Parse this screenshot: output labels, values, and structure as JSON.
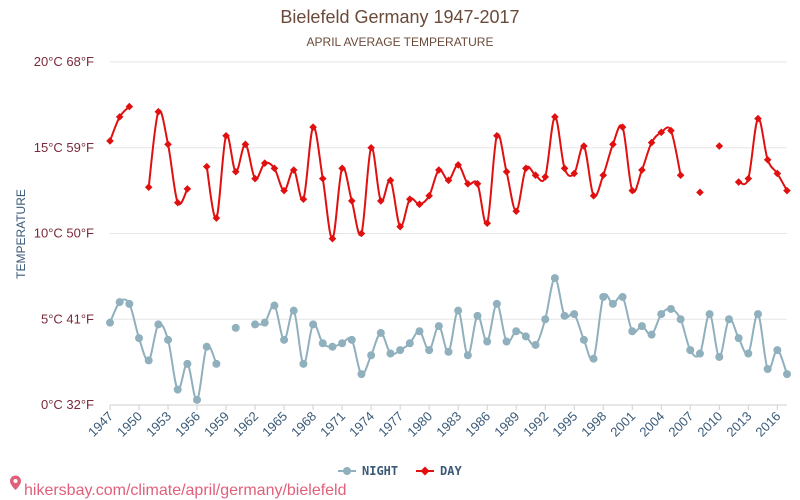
{
  "chart_data": {
    "type": "line",
    "title": "Bielefeld Germany 1947-2017",
    "subtitle": "APRIL AVERAGE TEMPERATURE",
    "ylabel": "TEMPERATURE",
    "ylim": [
      0,
      20
    ],
    "xlim": [
      1947,
      2017
    ],
    "yticks": [
      {
        "value": 0,
        "label": "0°C 32°F"
      },
      {
        "value": 5,
        "label": "5°C 41°F"
      },
      {
        "value": 10,
        "label": "10°C 50°F"
      },
      {
        "value": 15,
        "label": "15°C 59°F"
      },
      {
        "value": 20,
        "label": "20°C 68°F"
      }
    ],
    "xticks": [
      1947,
      1950,
      1953,
      1956,
      1959,
      1962,
      1965,
      1968,
      1971,
      1974,
      1977,
      1980,
      1983,
      1986,
      1989,
      1992,
      1995,
      1998,
      2001,
      2004,
      2007,
      2010,
      2013,
      2016
    ],
    "series": [
      {
        "name": "NIGHT",
        "color": "#8fb0bc",
        "marker": "circle",
        "points": [
          [
            1947,
            4.8
          ],
          [
            1948,
            6.0
          ],
          [
            1949,
            5.9
          ],
          [
            1950,
            3.9
          ],
          [
            1951,
            2.6
          ],
          [
            1952,
            4.7
          ],
          [
            1953,
            3.8
          ],
          [
            1954,
            0.9
          ],
          [
            1955,
            2.4
          ],
          [
            1956,
            0.3
          ],
          [
            1957,
            3.4
          ],
          [
            1958,
            2.4
          ],
          [
            1960,
            4.5
          ],
          [
            1962,
            4.7
          ],
          [
            1963,
            4.8
          ],
          [
            1964,
            5.8
          ],
          [
            1965,
            3.8
          ],
          [
            1966,
            5.5
          ],
          [
            1967,
            2.4
          ],
          [
            1968,
            4.7
          ],
          [
            1969,
            3.6
          ],
          [
            1970,
            3.4
          ],
          [
            1971,
            3.6
          ],
          [
            1972,
            3.8
          ],
          [
            1973,
            1.8
          ],
          [
            1974,
            2.9
          ],
          [
            1975,
            4.2
          ],
          [
            1976,
            3.0
          ],
          [
            1977,
            3.2
          ],
          [
            1978,
            3.6
          ],
          [
            1979,
            4.3
          ],
          [
            1980,
            3.2
          ],
          [
            1981,
            4.6
          ],
          [
            1982,
            3.1
          ],
          [
            1983,
            5.5
          ],
          [
            1984,
            2.9
          ],
          [
            1985,
            5.2
          ],
          [
            1986,
            3.7
          ],
          [
            1987,
            5.9
          ],
          [
            1988,
            3.7
          ],
          [
            1989,
            4.3
          ],
          [
            1990,
            4.0
          ],
          [
            1991,
            3.5
          ],
          [
            1992,
            5.0
          ],
          [
            1993,
            7.4
          ],
          [
            1994,
            5.2
          ],
          [
            1995,
            5.3
          ],
          [
            1996,
            3.8
          ],
          [
            1997,
            2.7
          ],
          [
            1998,
            6.3
          ],
          [
            1999,
            5.9
          ],
          [
            2000,
            6.3
          ],
          [
            2001,
            4.3
          ],
          [
            2002,
            4.6
          ],
          [
            2003,
            4.1
          ],
          [
            2004,
            5.3
          ],
          [
            2005,
            5.6
          ],
          [
            2006,
            5.0
          ],
          [
            2007,
            3.2
          ],
          [
            2008,
            3.0
          ],
          [
            2009,
            5.3
          ],
          [
            2010,
            2.8
          ],
          [
            2011,
            5.0
          ],
          [
            2012,
            3.9
          ],
          [
            2013,
            3.0
          ],
          [
            2014,
            5.3
          ],
          [
            2015,
            2.1
          ],
          [
            2016,
            3.2
          ],
          [
            2017,
            1.8
          ]
        ]
      },
      {
        "name": "DAY",
        "color": "#e01010",
        "marker": "diamond",
        "points": [
          [
            1947,
            15.4
          ],
          [
            1948,
            16.8
          ],
          [
            1949,
            17.4
          ],
          [
            1951,
            12.7
          ],
          [
            1952,
            17.1
          ],
          [
            1953,
            15.2
          ],
          [
            1954,
            11.8
          ],
          [
            1955,
            12.6
          ],
          [
            1957,
            13.9
          ],
          [
            1958,
            10.9
          ],
          [
            1959,
            15.7
          ],
          [
            1960,
            13.6
          ],
          [
            1961,
            15.2
          ],
          [
            1962,
            13.2
          ],
          [
            1963,
            14.1
          ],
          [
            1964,
            13.8
          ],
          [
            1965,
            12.5
          ],
          [
            1966,
            13.7
          ],
          [
            1967,
            12.0
          ],
          [
            1968,
            16.2
          ],
          [
            1969,
            13.2
          ],
          [
            1970,
            9.7
          ],
          [
            1971,
            13.8
          ],
          [
            1972,
            11.9
          ],
          [
            1973,
            10.0
          ],
          [
            1974,
            15.0
          ],
          [
            1975,
            11.9
          ],
          [
            1976,
            13.1
          ],
          [
            1977,
            10.4
          ],
          [
            1978,
            12.0
          ],
          [
            1979,
            11.7
          ],
          [
            1980,
            12.2
          ],
          [
            1981,
            13.7
          ],
          [
            1982,
            13.1
          ],
          [
            1983,
            14.0
          ],
          [
            1984,
            12.9
          ],
          [
            1985,
            12.9
          ],
          [
            1986,
            10.6
          ],
          [
            1987,
            15.7
          ],
          [
            1988,
            13.6
          ],
          [
            1989,
            11.3
          ],
          [
            1990,
            13.8
          ],
          [
            1991,
            13.4
          ],
          [
            1992,
            13.3
          ],
          [
            1993,
            16.8
          ],
          [
            1994,
            13.8
          ],
          [
            1995,
            13.5
          ],
          [
            1996,
            15.1
          ],
          [
            1997,
            12.2
          ],
          [
            1998,
            13.4
          ],
          [
            1999,
            15.2
          ],
          [
            2000,
            16.2
          ],
          [
            2001,
            12.5
          ],
          [
            2002,
            13.7
          ],
          [
            2003,
            15.3
          ],
          [
            2004,
            15.9
          ],
          [
            2005,
            16.0
          ],
          [
            2006,
            13.4
          ],
          [
            2008,
            12.4
          ],
          [
            2010,
            15.1
          ],
          [
            2012,
            13.0
          ],
          [
            2013,
            13.2
          ],
          [
            2014,
            16.7
          ],
          [
            2015,
            14.3
          ],
          [
            2016,
            13.5
          ],
          [
            2017,
            12.5
          ]
        ]
      }
    ]
  },
  "footer": {
    "source_text": "hikersbay.com/climate/april/germany/bielefeld"
  }
}
